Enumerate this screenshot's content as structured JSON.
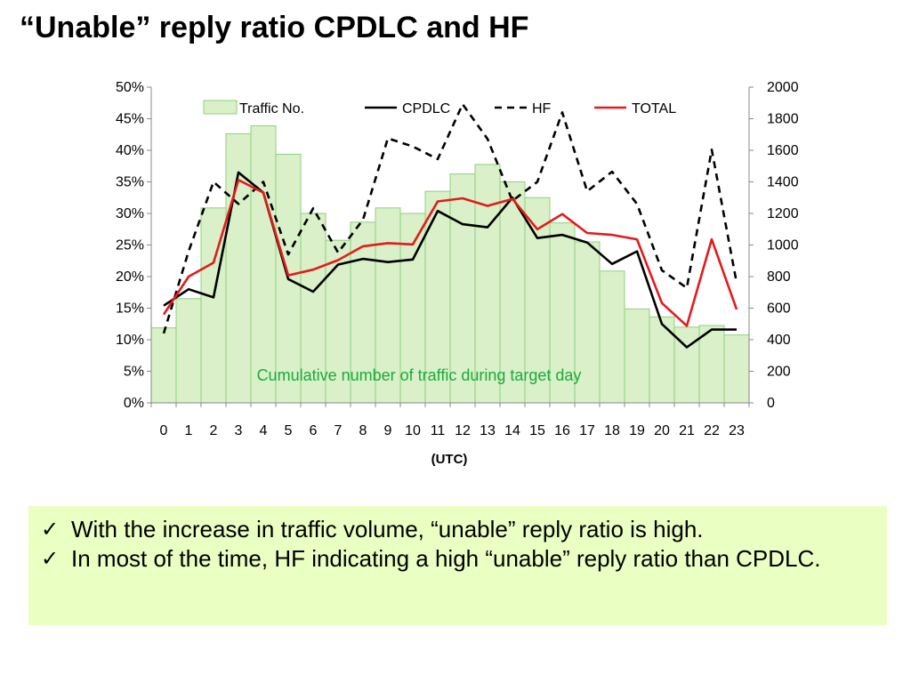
{
  "title": "“Unable” reply ratio CPDLC and HF",
  "colors": {
    "bar_fill": "#d9f0c8",
    "bar_stroke": "#8fd07a",
    "cpdlc": "#000000",
    "hf": "#000000",
    "total": "#e41a1c",
    "annotation": "#1aab3c",
    "notes_bg": "#eaffc2"
  },
  "chart_data": {
    "type": "bar",
    "categories": [
      "0",
      "1",
      "2",
      "3",
      "4",
      "5",
      "6",
      "7",
      "8",
      "9",
      "10",
      "11",
      "12",
      "13",
      "14",
      "15",
      "16",
      "17",
      "18",
      "19",
      "20",
      "21",
      "22",
      "23"
    ],
    "xlabel": "(UTC)",
    "y_left": {
      "ylim": [
        0,
        50
      ],
      "ticks": [
        "0%",
        "5%",
        "10%",
        "15%",
        "20%",
        "25%",
        "30%",
        "35%",
        "40%",
        "45%",
        "50%"
      ]
    },
    "y_right": {
      "ylim": [
        0,
        2000
      ],
      "ticks": [
        "0",
        "200",
        "400",
        "600",
        "800",
        "1000",
        "1200",
        "1400",
        "1600",
        "1800",
        "2000"
      ]
    },
    "legend": {
      "placement": "top",
      "entries": [
        "Traffic No.",
        "CPDLC",
        "HF",
        "TOTAL"
      ]
    },
    "annotation": "Cumulative number of traffic during target day",
    "grid": false,
    "series": [
      {
        "name": "Traffic No.",
        "type": "bar",
        "axis": "right",
        "values": [
          475,
          660,
          1235,
          1705,
          1755,
          1575,
          1200,
          1030,
          1145,
          1235,
          1200,
          1340,
          1450,
          1510,
          1400,
          1300,
          1140,
          1020,
          835,
          595,
          545,
          480,
          490,
          430
        ]
      },
      {
        "name": "CPDLC",
        "type": "line",
        "axis": "left",
        "style": "solid",
        "values": [
          15.4,
          18.0,
          16.7,
          36.5,
          33.3,
          19.6,
          17.6,
          21.9,
          22.8,
          22.3,
          22.7,
          30.4,
          28.3,
          27.8,
          32.5,
          26.1,
          26.6,
          25.4,
          22.0,
          24.0,
          12.5,
          8.8,
          11.6,
          11.6
        ]
      },
      {
        "name": "HF",
        "type": "line",
        "axis": "left",
        "style": "dashed",
        "values": [
          11.0,
          24.0,
          35.0,
          31.5,
          35.0,
          23.5,
          30.8,
          23.8,
          29.0,
          41.9,
          40.6,
          38.6,
          47.3,
          41.8,
          32.0,
          35.0,
          46.0,
          33.5,
          36.6,
          31.5,
          21.0,
          18.2,
          40.1,
          19.0
        ]
      },
      {
        "name": "TOTAL",
        "type": "line",
        "axis": "left",
        "style": "solid",
        "values": [
          14.0,
          20.0,
          22.2,
          35.3,
          33.3,
          20.2,
          21.1,
          22.6,
          24.8,
          25.3,
          25.1,
          31.9,
          32.4,
          31.2,
          32.3,
          27.5,
          29.9,
          26.9,
          26.6,
          25.9,
          15.8,
          12.2,
          25.9,
          14.8
        ]
      }
    ]
  },
  "notes": {
    "check": "✓",
    "items": [
      "With the increase in traffic volume, “unable” reply ratio is high.",
      "In most of the time, HF indicating a high “unable” reply ratio than CPDLC."
    ]
  }
}
